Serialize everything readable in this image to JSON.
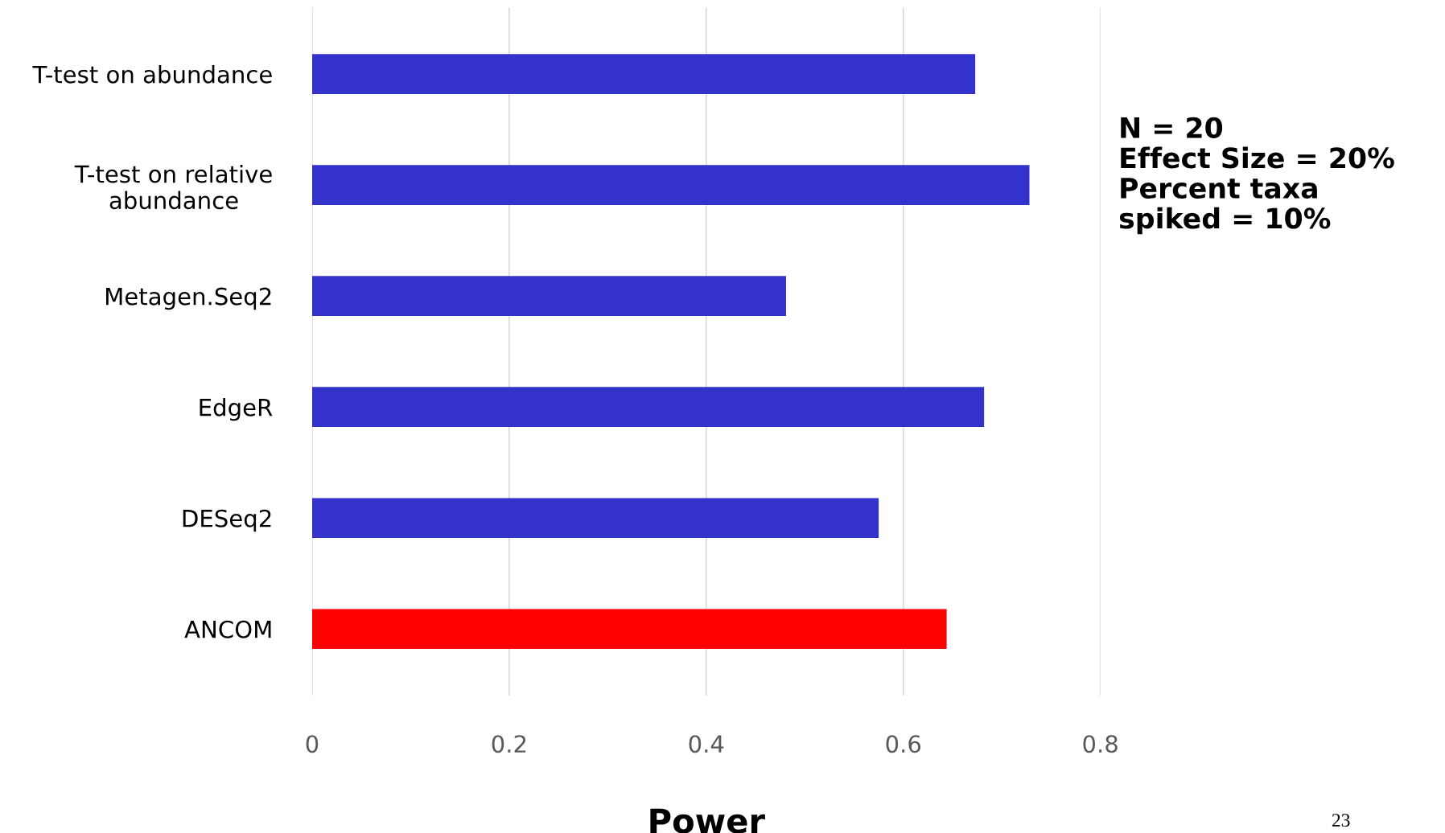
{
  "chart_data": {
    "type": "bar",
    "orientation": "horizontal",
    "categories": [
      "T-test on abundance",
      "T-test on relative\nabundance",
      "Metagen.Seq2",
      "EdgeR",
      "DESeq2",
      "ANCOM"
    ],
    "values": [
      0.673,
      0.728,
      0.481,
      0.682,
      0.575,
      0.644
    ],
    "colors": [
      "#3333cc",
      "#3333cc",
      "#3333cc",
      "#3333cc",
      "#3333cc",
      "#ff0000"
    ],
    "xlabel": "Power",
    "xlim": [
      0,
      0.8
    ],
    "xticks": [
      0,
      0.2,
      0.4,
      0.6,
      0.8
    ],
    "grid": "x",
    "annotations": [
      "N = 20\nEffect Size = 20%\nPercent taxa\nspiked = 10%",
      "23"
    ]
  }
}
